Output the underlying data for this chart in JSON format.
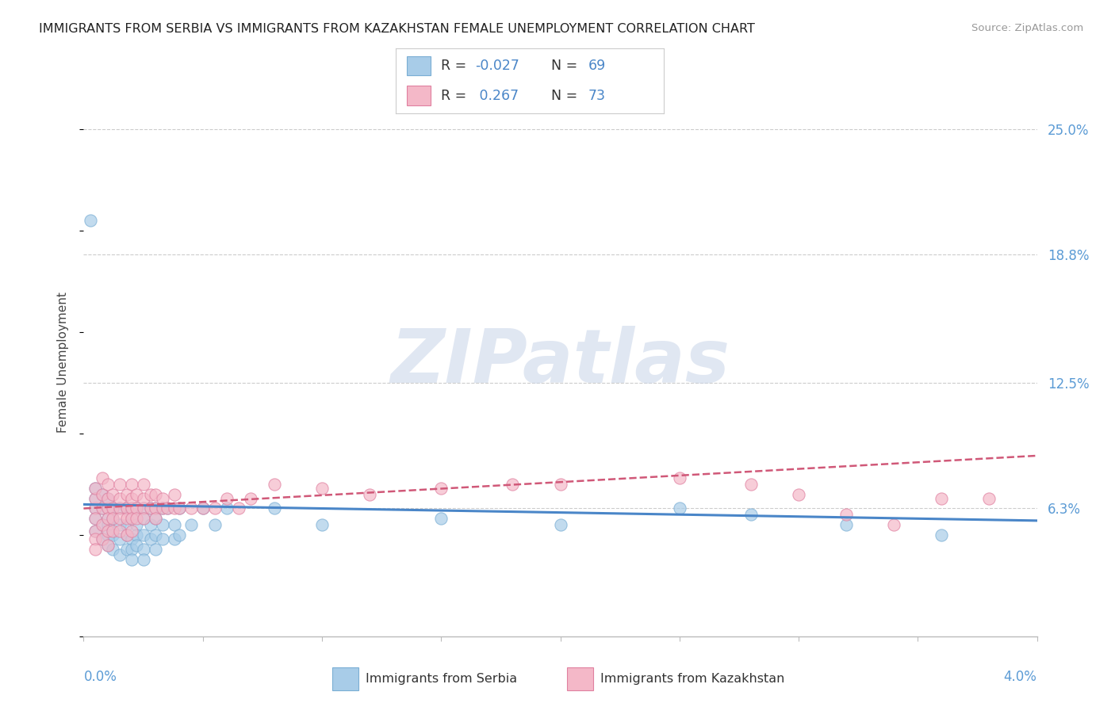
{
  "title": "IMMIGRANTS FROM SERBIA VS IMMIGRANTS FROM KAZAKHSTAN FEMALE UNEMPLOYMENT CORRELATION CHART",
  "source": "Source: ZipAtlas.com",
  "ylabel": "Female Unemployment",
  "y_ticks": [
    0.063,
    0.125,
    0.188,
    0.25
  ],
  "y_tick_labels": [
    "6.3%",
    "12.5%",
    "18.8%",
    "25.0%"
  ],
  "x_lim": [
    0.0,
    0.04
  ],
  "y_lim": [
    0.0,
    0.27
  ],
  "serbia_color": "#a8cce8",
  "serbia_edge": "#7aaed4",
  "kazakhstan_color": "#f4b8c8",
  "kazakhstan_edge": "#e080a0",
  "serbia_line_color": "#4a86c8",
  "kazakhstan_line_color": "#d05878",
  "serbia_R": -0.027,
  "serbia_N": 69,
  "kazakhstan_R": 0.267,
  "kazakhstan_N": 73,
  "watermark_text": "ZIPatlas",
  "background_color": "#ffffff",
  "grid_color": "#cccccc",
  "serbia_scatter": [
    [
      0.0005,
      0.063
    ],
    [
      0.0005,
      0.058
    ],
    [
      0.0005,
      0.068
    ],
    [
      0.0005,
      0.073
    ],
    [
      0.0005,
      0.052
    ],
    [
      0.0008,
      0.063
    ],
    [
      0.0008,
      0.055
    ],
    [
      0.0008,
      0.07
    ],
    [
      0.0008,
      0.048
    ],
    [
      0.001,
      0.063
    ],
    [
      0.001,
      0.058
    ],
    [
      0.001,
      0.055
    ],
    [
      0.001,
      0.068
    ],
    [
      0.001,
      0.05
    ],
    [
      0.001,
      0.045
    ],
    [
      0.0012,
      0.063
    ],
    [
      0.0012,
      0.058
    ],
    [
      0.0012,
      0.05
    ],
    [
      0.0012,
      0.043
    ],
    [
      0.0015,
      0.063
    ],
    [
      0.0015,
      0.055
    ],
    [
      0.0015,
      0.048
    ],
    [
      0.0015,
      0.04
    ],
    [
      0.0018,
      0.063
    ],
    [
      0.0018,
      0.055
    ],
    [
      0.0018,
      0.05
    ],
    [
      0.0018,
      0.043
    ],
    [
      0.002,
      0.063
    ],
    [
      0.002,
      0.058
    ],
    [
      0.002,
      0.048
    ],
    [
      0.002,
      0.043
    ],
    [
      0.002,
      0.038
    ],
    [
      0.0022,
      0.063
    ],
    [
      0.0022,
      0.055
    ],
    [
      0.0022,
      0.05
    ],
    [
      0.0022,
      0.045
    ],
    [
      0.0025,
      0.063
    ],
    [
      0.0025,
      0.058
    ],
    [
      0.0025,
      0.05
    ],
    [
      0.0025,
      0.043
    ],
    [
      0.0025,
      0.038
    ],
    [
      0.0028,
      0.063
    ],
    [
      0.0028,
      0.055
    ],
    [
      0.0028,
      0.048
    ],
    [
      0.003,
      0.063
    ],
    [
      0.003,
      0.058
    ],
    [
      0.003,
      0.05
    ],
    [
      0.003,
      0.043
    ],
    [
      0.0033,
      0.063
    ],
    [
      0.0033,
      0.055
    ],
    [
      0.0033,
      0.048
    ],
    [
      0.0035,
      0.063
    ],
    [
      0.0038,
      0.055
    ],
    [
      0.0038,
      0.048
    ],
    [
      0.004,
      0.063
    ],
    [
      0.004,
      0.05
    ],
    [
      0.0045,
      0.055
    ],
    [
      0.005,
      0.063
    ],
    [
      0.0055,
      0.055
    ],
    [
      0.006,
      0.063
    ],
    [
      0.0003,
      0.205
    ],
    [
      0.008,
      0.063
    ],
    [
      0.01,
      0.055
    ],
    [
      0.015,
      0.058
    ],
    [
      0.02,
      0.055
    ],
    [
      0.025,
      0.063
    ],
    [
      0.028,
      0.06
    ],
    [
      0.032,
      0.055
    ],
    [
      0.036,
      0.05
    ]
  ],
  "kaz_scatter": [
    [
      0.0005,
      0.063
    ],
    [
      0.0005,
      0.068
    ],
    [
      0.0005,
      0.073
    ],
    [
      0.0005,
      0.058
    ],
    [
      0.0005,
      0.052
    ],
    [
      0.0005,
      0.048
    ],
    [
      0.0005,
      0.043
    ],
    [
      0.0008,
      0.063
    ],
    [
      0.0008,
      0.07
    ],
    [
      0.0008,
      0.078
    ],
    [
      0.0008,
      0.055
    ],
    [
      0.0008,
      0.048
    ],
    [
      0.001,
      0.063
    ],
    [
      0.001,
      0.068
    ],
    [
      0.001,
      0.075
    ],
    [
      0.001,
      0.058
    ],
    [
      0.001,
      0.052
    ],
    [
      0.001,
      0.045
    ],
    [
      0.0012,
      0.063
    ],
    [
      0.0012,
      0.07
    ],
    [
      0.0012,
      0.058
    ],
    [
      0.0012,
      0.052
    ],
    [
      0.0015,
      0.063
    ],
    [
      0.0015,
      0.068
    ],
    [
      0.0015,
      0.075
    ],
    [
      0.0015,
      0.058
    ],
    [
      0.0015,
      0.052
    ],
    [
      0.0018,
      0.063
    ],
    [
      0.0018,
      0.07
    ],
    [
      0.0018,
      0.058
    ],
    [
      0.0018,
      0.05
    ],
    [
      0.002,
      0.063
    ],
    [
      0.002,
      0.068
    ],
    [
      0.002,
      0.075
    ],
    [
      0.002,
      0.058
    ],
    [
      0.002,
      0.052
    ],
    [
      0.0022,
      0.063
    ],
    [
      0.0022,
      0.07
    ],
    [
      0.0022,
      0.058
    ],
    [
      0.0025,
      0.063
    ],
    [
      0.0025,
      0.068
    ],
    [
      0.0025,
      0.075
    ],
    [
      0.0025,
      0.058
    ],
    [
      0.0028,
      0.063
    ],
    [
      0.0028,
      0.07
    ],
    [
      0.003,
      0.063
    ],
    [
      0.003,
      0.07
    ],
    [
      0.003,
      0.058
    ],
    [
      0.0033,
      0.063
    ],
    [
      0.0033,
      0.068
    ],
    [
      0.0035,
      0.063
    ],
    [
      0.0038,
      0.063
    ],
    [
      0.0038,
      0.07
    ],
    [
      0.004,
      0.063
    ],
    [
      0.0045,
      0.063
    ],
    [
      0.005,
      0.063
    ],
    [
      0.0055,
      0.063
    ],
    [
      0.006,
      0.068
    ],
    [
      0.0065,
      0.063
    ],
    [
      0.007,
      0.068
    ],
    [
      0.008,
      0.075
    ],
    [
      0.01,
      0.073
    ],
    [
      0.012,
      0.07
    ],
    [
      0.015,
      0.073
    ],
    [
      0.018,
      0.075
    ],
    [
      0.02,
      0.075
    ],
    [
      0.025,
      0.078
    ],
    [
      0.028,
      0.075
    ],
    [
      0.03,
      0.07
    ],
    [
      0.032,
      0.06
    ],
    [
      0.034,
      0.055
    ],
    [
      0.036,
      0.068
    ],
    [
      0.038,
      0.068
    ]
  ]
}
